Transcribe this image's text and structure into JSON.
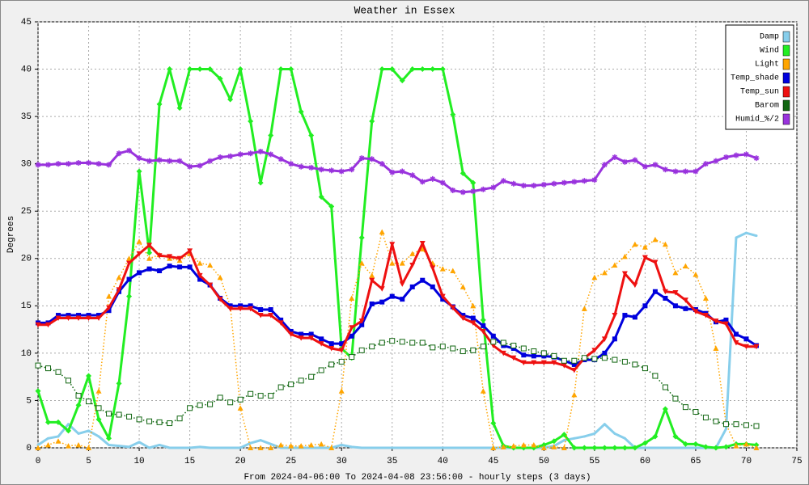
{
  "chart_data": {
    "type": "line",
    "title": "Weather in Essex",
    "ylabel": "Degrees",
    "xlabel": "From 2024-04-06:00 To 2024-04-08 23:56:00 - hourly steps (3 days)",
    "x": [
      0,
      1,
      2,
      3,
      4,
      5,
      6,
      7,
      8,
      9,
      10,
      11,
      12,
      13,
      14,
      15,
      16,
      17,
      18,
      19,
      20,
      21,
      22,
      23,
      24,
      25,
      26,
      27,
      28,
      29,
      30,
      31,
      32,
      33,
      34,
      35,
      36,
      37,
      38,
      39,
      40,
      41,
      42,
      43,
      44,
      45,
      46,
      47,
      48,
      49,
      50,
      51,
      52,
      53,
      54,
      55,
      56,
      57,
      58,
      59,
      60,
      61,
      62,
      63,
      64,
      65,
      66,
      67,
      68,
      69,
      70,
      71
    ],
    "xlim": [
      0,
      75
    ],
    "xticks": [
      0,
      5,
      10,
      15,
      20,
      25,
      30,
      35,
      40,
      45,
      50,
      55,
      60,
      65,
      70,
      75
    ],
    "ylim": [
      0,
      45
    ],
    "yticks": [
      0,
      5,
      10,
      15,
      20,
      25,
      30,
      35,
      40,
      45
    ],
    "grid": true,
    "legend": "upper right",
    "series": [
      {
        "name": "Damp",
        "color": "#87ceeb",
        "marker": "none",
        "line_style": "solid",
        "values": [
          0.3,
          1,
          1.2,
          2.5,
          1.5,
          1.8,
          1.2,
          0.3,
          0.2,
          0.1,
          0.6,
          0,
          0.3,
          0,
          0,
          0,
          0.1,
          0,
          0,
          0,
          0,
          0.5,
          0.8,
          0.4,
          0,
          0,
          0,
          0,
          0,
          0,
          0.3,
          0.1,
          0,
          0,
          0,
          0,
          0,
          0,
          0,
          0,
          0,
          0,
          0,
          0,
          0,
          0,
          0,
          0,
          0,
          0,
          0,
          0.2,
          0.8,
          1,
          1.2,
          1.5,
          2.5,
          1.5,
          1,
          0,
          0,
          0,
          0,
          0,
          0,
          0,
          0,
          0,
          2,
          22.2,
          22.7,
          22.4
        ]
      },
      {
        "name": "Wind",
        "color": "#22ee22",
        "marker": "diamond",
        "line_style": "solid",
        "values": [
          6,
          2.7,
          2.7,
          1.8,
          4.5,
          7.6,
          3,
          1,
          6.8,
          16,
          29.2,
          20.6,
          36.3,
          40,
          35.9,
          40,
          40,
          40,
          39,
          36.8,
          40,
          34.5,
          28,
          33,
          40,
          40,
          35.5,
          33,
          26.5,
          25.5,
          10.5,
          9.5,
          22.2,
          34.5,
          40,
          40,
          38.8,
          40,
          40,
          40,
          40,
          35.2,
          29,
          28,
          13.5,
          2.6,
          0.2,
          0,
          0,
          0,
          0.3,
          0.7,
          1.4,
          0,
          0,
          0,
          0,
          0,
          0,
          0,
          0.5,
          1.2,
          4.1,
          1.2,
          0.4,
          0.4,
          0.1,
          0,
          0.1,
          0.4,
          0.4,
          0.3
        ]
      },
      {
        "name": "Light",
        "color": "#ffa500",
        "marker": "triangle-up",
        "line_style": "dotted",
        "values": [
          0,
          0.3,
          0.7,
          0.2,
          0.3,
          0,
          6,
          16,
          18,
          20,
          21.8,
          20,
          20.4,
          20,
          19.8,
          20.5,
          19.5,
          19.3,
          18,
          15,
          4.2,
          0,
          0,
          0,
          0.3,
          0.2,
          0.2,
          0.3,
          0.4,
          0,
          6,
          15.8,
          19.5,
          18.2,
          22.8,
          19.5,
          19.5,
          20.5,
          21,
          19.5,
          18.9,
          18.7,
          17,
          15,
          6,
          0,
          0.1,
          0.2,
          0.3,
          0.3,
          0,
          0.1,
          0,
          5.6,
          14.7,
          18,
          18.5,
          19.3,
          20.2,
          21.5,
          21.2,
          22,
          21.5,
          18.5,
          19.2,
          18.3,
          15.8,
          10.5,
          2.5,
          0.2,
          0.4,
          0
        ]
      },
      {
        "name": "Temp_shade",
        "color": "#0000dd",
        "marker": "square",
        "line_style": "solid",
        "values": [
          13.2,
          13.2,
          14,
          14,
          14,
          14,
          14,
          14.5,
          16.5,
          17.8,
          18.5,
          18.9,
          18.7,
          19.2,
          19.1,
          19.1,
          17.8,
          17.2,
          15.8,
          15,
          15,
          15,
          14.6,
          14.6,
          13.5,
          12.3,
          12,
          12,
          11.5,
          11,
          11,
          11.8,
          13,
          15.2,
          15.4,
          16,
          15.7,
          17,
          17.7,
          17,
          15.7,
          14.9,
          14,
          13.7,
          12.9,
          11.8,
          10.8,
          10.5,
          9.8,
          9.7,
          9.7,
          9.6,
          9.2,
          8.8,
          9.3,
          9.3,
          10,
          11.5,
          14,
          13.8,
          15,
          16.5,
          15.8,
          15,
          14.7,
          14.6,
          14.2,
          13.3,
          13.5,
          12,
          11.5,
          10.8
        ]
      },
      {
        "name": "Temp_sun",
        "color": "#ee1111",
        "marker": "triangle-down",
        "line_style": "solid",
        "values": [
          13,
          13,
          13.7,
          13.7,
          13.7,
          13.7,
          13.7,
          14.8,
          16.7,
          19.5,
          20.5,
          21.4,
          20.3,
          20.2,
          20,
          20.8,
          18.2,
          17.2,
          15.7,
          14.7,
          14.7,
          14.7,
          14,
          14,
          13.2,
          12,
          11.6,
          11.6,
          11,
          10.5,
          10.3,
          12.7,
          13.4,
          17.7,
          16.8,
          21.5,
          17.3,
          19.3,
          21.6,
          19,
          16,
          14.8,
          13.7,
          13.2,
          12.3,
          10.8,
          10,
          9.5,
          9,
          9,
          9,
          9,
          8.7,
          8.2,
          9.5,
          10.3,
          11.5,
          14,
          18.4,
          17.2,
          20.1,
          19.6,
          16.5,
          16.4,
          15.6,
          14.4,
          14,
          13.4,
          13.1,
          11.1,
          10.7,
          10.7
        ]
      },
      {
        "name": "Barom",
        "color": "#116611",
        "marker": "open-square",
        "line_style": "dotted",
        "values": [
          8.7,
          8.4,
          8,
          7.1,
          5.5,
          4.9,
          4.2,
          3.6,
          3.5,
          3.3,
          3,
          2.8,
          2.7,
          2.6,
          3.1,
          4.2,
          4.5,
          4.6,
          5.3,
          4.8,
          5.1,
          5.7,
          5.5,
          5.5,
          6.4,
          6.7,
          7.1,
          7.5,
          8.2,
          8.8,
          9.1,
          9.6,
          10.3,
          10.7,
          11.1,
          11.3,
          11.2,
          11.1,
          11.1,
          10.6,
          10.7,
          10.5,
          10.2,
          10.3,
          10.7,
          11.2,
          11.1,
          10.8,
          10.5,
          10.2,
          10,
          9.7,
          9.2,
          9.2,
          9.5,
          9.4,
          9.5,
          9.3,
          9.1,
          8.8,
          8.4,
          7.6,
          6.4,
          5.2,
          4.3,
          3.8,
          3.2,
          2.8,
          2.5,
          2.5,
          2.4,
          2.3
        ]
      },
      {
        "name": "Humid_%/2",
        "color": "#9933dd",
        "marker": "star",
        "line_style": "solid",
        "values": [
          29.9,
          29.9,
          30,
          30,
          30.1,
          30.1,
          30,
          29.9,
          31.1,
          31.4,
          30.6,
          30.3,
          30.4,
          30.3,
          30.3,
          29.7,
          29.8,
          30.3,
          30.7,
          30.8,
          31,
          31.1,
          31.3,
          31,
          30.5,
          30,
          29.7,
          29.6,
          29.4,
          29.3,
          29.2,
          29.4,
          30.6,
          30.5,
          30,
          29.1,
          29.2,
          28.8,
          28.1,
          28.4,
          28,
          27.2,
          27,
          27.1,
          27.3,
          27.5,
          28.2,
          27.9,
          27.7,
          27.7,
          27.8,
          27.9,
          28,
          28.1,
          28.2,
          28.3,
          29.9,
          30.7,
          30.2,
          30.4,
          29.7,
          29.9,
          29.4,
          29.2,
          29.2,
          29.2,
          30,
          30.3,
          30.7,
          30.9,
          31,
          30.6
        ]
      }
    ]
  }
}
